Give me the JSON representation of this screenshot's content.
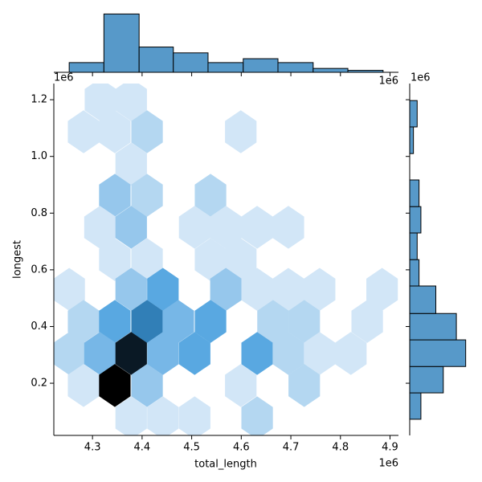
{
  "chart_data": [
    {
      "type": "hexbin",
      "x_label": "total_length",
      "y_label": "longest",
      "x_offset": "1e6",
      "y_offset": "1e6",
      "xlim": [
        4.222,
        4.917
      ],
      "ylim": [
        0.016,
        1.257
      ],
      "xticks": [
        4.3,
        4.4,
        4.5,
        4.6,
        4.7,
        4.8,
        4.9
      ],
      "yticks": [
        0.2,
        0.4,
        0.6,
        0.8,
        {
          "value": 1,
          "label": "1.0"
        },
        1.2
      ],
      "cmap": [
        "#f0f6fc",
        "#3b98dc",
        "#000000"
      ],
      "x": [
        4.316,
        4.378,
        4.282,
        4.345,
        4.41,
        4.599,
        4.378,
        4.345,
        4.41,
        4.538,
        4.315,
        4.378,
        4.506,
        4.569,
        4.632,
        4.695,
        4.345,
        4.41,
        4.538,
        4.599,
        4.253,
        4.378,
        4.442,
        4.569,
        4.632,
        4.695,
        4.758,
        4.884,
        4.282,
        4.345,
        4.41,
        4.473,
        4.538,
        4.664,
        4.727,
        4.854,
        4.253,
        4.315,
        4.378,
        4.442,
        4.506,
        4.632,
        4.695,
        4.758,
        4.821,
        4.282,
        4.345,
        4.41,
        4.599,
        4.727,
        4.378,
        4.442,
        4.506,
        4.632
      ],
      "y": [
        1.2,
        1.2,
        1.087,
        1.087,
        1.087,
        1.087,
        0.973,
        0.863,
        0.863,
        0.863,
        0.75,
        0.75,
        0.75,
        0.75,
        0.75,
        0.75,
        0.636,
        0.636,
        0.636,
        0.636,
        0.531,
        0.531,
        0.531,
        0.531,
        0.531,
        0.531,
        0.531,
        0.531,
        0.418,
        0.418,
        0.418,
        0.418,
        0.418,
        0.418,
        0.418,
        0.418,
        0.305,
        0.305,
        0.305,
        0.305,
        0.305,
        0.305,
        0.305,
        0.305,
        0.305,
        0.192,
        0.192,
        0.192,
        0.192,
        0.192,
        0.078,
        0.078,
        0.078,
        0.078
      ],
      "counts": [
        1,
        1,
        1,
        1,
        2,
        1,
        1,
        3,
        2,
        2,
        1,
        3,
        1,
        1,
        1,
        1,
        1,
        1,
        1,
        1,
        1,
        3,
        5,
        3,
        1,
        1,
        1,
        1,
        2,
        5,
        7,
        4,
        5,
        2,
        2,
        1,
        2,
        4,
        11,
        4,
        5,
        5,
        2,
        1,
        1,
        1,
        12,
        3,
        1,
        2,
        1,
        1,
        1,
        2
      ]
    },
    {
      "type": "histogram",
      "orientation": "vertical",
      "color": "#5799c9",
      "xlim": [
        4.222,
        4.917
      ],
      "ylim": [
        0,
        31
      ],
      "bins": [
        4.253,
        4.323,
        4.394,
        4.463,
        4.533,
        4.604,
        4.674,
        4.745,
        4.815,
        4.886
      ],
      "counts": [
        5,
        30,
        13,
        10,
        5,
        7,
        5,
        2,
        1
      ]
    },
    {
      "type": "histogram",
      "orientation": "horizontal",
      "color": "#5799c9",
      "xlim": [
        0,
        31
      ],
      "ylim": [
        0.016,
        1.257
      ],
      "bins": [
        0.073,
        0.166,
        0.259,
        0.353,
        0.446,
        0.543,
        0.636,
        0.73,
        0.823,
        0.917,
        1.01,
        1.104,
        1.197
      ],
      "counts": [
        6,
        18,
        30,
        25,
        14,
        5,
        4,
        6,
        5,
        0,
        2,
        4
      ]
    }
  ]
}
